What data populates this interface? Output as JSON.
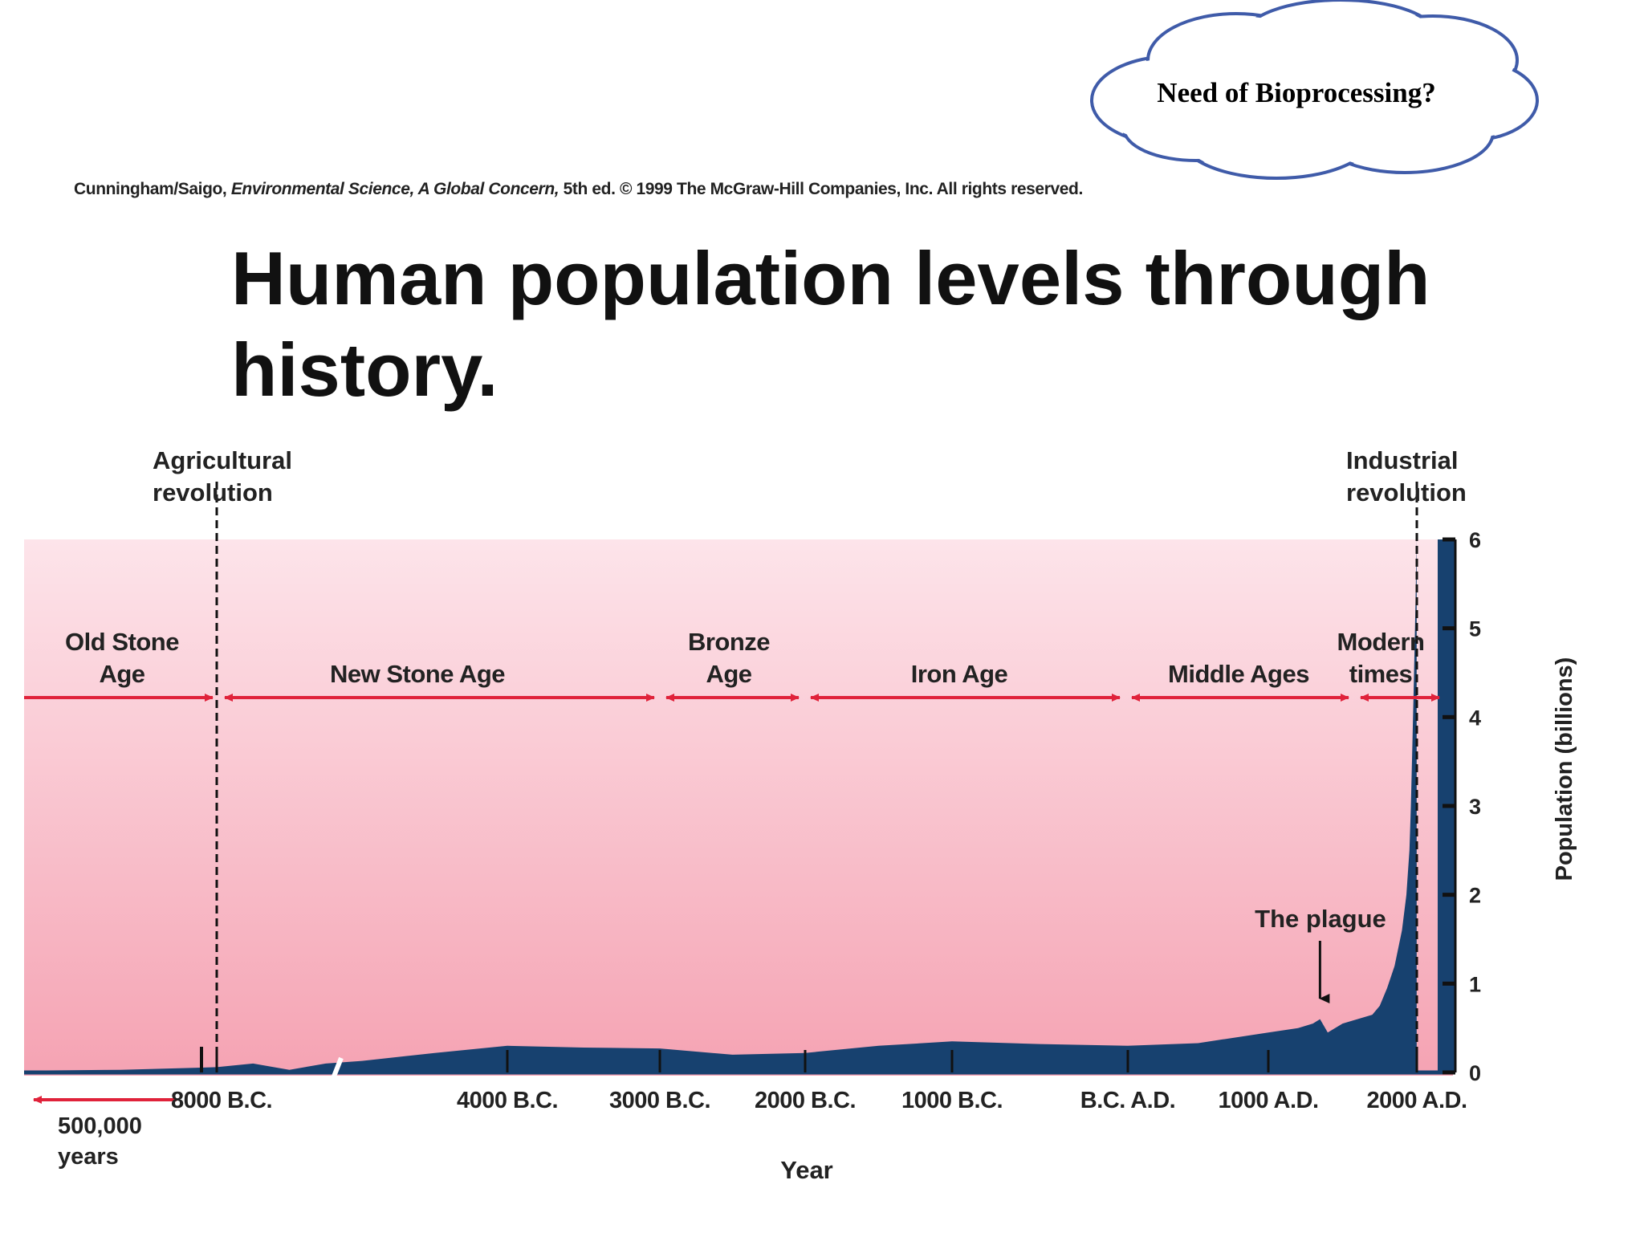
{
  "callout": {
    "text": "Need of Bioprocessing?"
  },
  "credit": {
    "authors": "Cunningham/Saigo,",
    "book": "Environmental Science, A Global Concern,",
    "rest": "5th ed. © 1999 The McGraw-Hill Companies, Inc. All rights reserved."
  },
  "colors": {
    "band_top": "#fde4ea",
    "band_bottom": "#f5a3b3",
    "area": "#17416f",
    "arrow": "#e0223a",
    "cloud_stroke": "#3f5ba9"
  },
  "chart_data": {
    "type": "area",
    "title": "Human population levels through history.",
    "xlabel": "Year",
    "ylabel": "Population (billions)",
    "ylim": [
      0,
      6
    ],
    "y_ticks": [
      "0",
      "1",
      "2",
      "3",
      "4",
      "5",
      "6"
    ],
    "x_ticks": [
      "8000 B.C.",
      "4000 B.C.",
      "3000 B.C.",
      "2000 B.C.",
      "1000 B.C.",
      "B.C. A.D.",
      "1000 A.D.",
      "2000 A.D."
    ],
    "x_ticks_year": [
      -8000,
      -4000,
      -3000,
      -2000,
      -1000,
      0,
      1000,
      2000
    ],
    "x_break_label": "500,000 years",
    "series": [
      {
        "x": [
          -10000,
          -9000,
          -8000,
          -7500,
          -7000,
          -6500,
          -6000,
          -5000,
          -4000,
          -3500,
          -3000,
          -2500,
          -2000,
          -1500,
          -1000,
          -500,
          0,
          500,
          1000,
          1200,
          1300,
          1348,
          1400,
          1500,
          1600,
          1700,
          1750,
          1800,
          1850,
          1900,
          1930,
          1950,
          1960,
          1970,
          1980,
          1990,
          1999
        ],
        "y": [
          0.02,
          0.03,
          0.06,
          0.1,
          0.03,
          0.1,
          0.13,
          0.22,
          0.3,
          0.28,
          0.27,
          0.2,
          0.22,
          0.3,
          0.35,
          0.32,
          0.3,
          0.33,
          0.45,
          0.5,
          0.55,
          0.6,
          0.45,
          0.55,
          0.6,
          0.65,
          0.75,
          0.95,
          1.2,
          1.6,
          2.0,
          2.5,
          3.0,
          3.7,
          4.4,
          5.2,
          6.0
        ]
      }
    ],
    "eras": [
      {
        "label": "Old Stone Age"
      },
      {
        "label": "New Stone Age"
      },
      {
        "label": "Bronze Age"
      },
      {
        "label": "Iron Age"
      },
      {
        "label": "Middle Ages"
      },
      {
        "label": "Modern times"
      }
    ],
    "annotations": [
      {
        "label": "Agricultural revolution",
        "year": -8000
      },
      {
        "label": "Industrial revolution",
        "year": 1750
      },
      {
        "label": "The plague",
        "year": 1348
      }
    ]
  }
}
